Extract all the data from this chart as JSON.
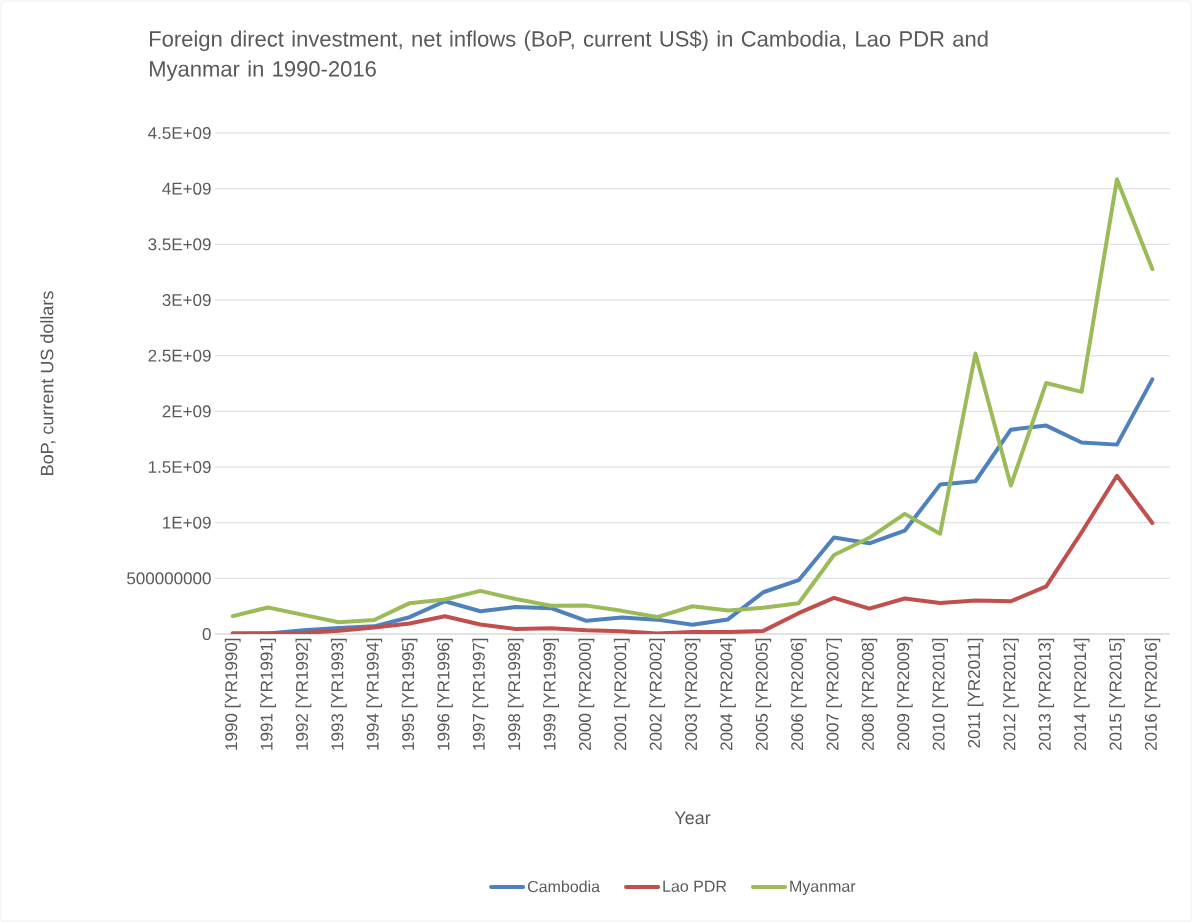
{
  "chart_data": {
    "type": "line",
    "title": "Foreign direct investment, net inflows (BoP, current US$) in Cambodia, Lao PDR and Myanmar in 1990-2016",
    "xlabel": "Year",
    "ylabel": "BoP, current US dollars",
    "categories": [
      "1990 [YR1990]",
      "1991 [YR1991]",
      "1992 [YR1992]",
      "1993 [YR1993]",
      "1994 [YR1994]",
      "1995 [YR1995]",
      "1996 [YR1996]",
      "1997 [YR1997]",
      "1998 [YR1998]",
      "1999 [YR1999]",
      "2000 [YR2000]",
      "2001 [YR2001]",
      "2002 [YR2002]",
      "2003 [YR2003]",
      "2004 [YR2004]",
      "2005 [YR2005]",
      "2006 [YR2006]",
      "2007 [YR2007]",
      "2008 [YR2008]",
      "2009 [YR2009]",
      "2010 [YR2010]",
      "2011 [YR2011]",
      "2012 [YR2012]",
      "2013 [YR2013]",
      "2014 [YR2014]",
      "2015 [YR2015]",
      "2016 [YR2016]"
    ],
    "series": [
      {
        "name": "Cambodia",
        "color": "#4f81bd",
        "values": [
          0,
          5000000,
          33000000,
          54000000,
          69000000,
          151000000,
          294000000,
          204000000,
          243000000,
          232000000,
          118000000,
          149000000,
          129000000,
          84000000,
          131000000,
          375000000,
          483000000,
          867000000,
          815000000,
          928000000,
          1342000000,
          1372000000,
          1835000000,
          1872000000,
          1720000000,
          1701000000,
          2287000000
        ]
      },
      {
        "name": "Lao PDR",
        "color": "#c0504d",
        "values": [
          6000000,
          7000000,
          8000000,
          30000000,
          59000000,
          95000000,
          160000000,
          86000000,
          45000000,
          52000000,
          34000000,
          24000000,
          5000000,
          19000000,
          17000000,
          28000000,
          187000000,
          324000000,
          228000000,
          319000000,
          279000000,
          301000000,
          294000000,
          427000000,
          913000000,
          1421000000,
          997000000
        ]
      },
      {
        "name": "Myanmar",
        "color": "#9bbb59",
        "values": [
          161000000,
          238000000,
          172000000,
          105000000,
          126000000,
          277000000,
          310000000,
          387000000,
          314000000,
          253000000,
          255000000,
          208000000,
          152000000,
          249000000,
          211000000,
          236000000,
          276000000,
          710000000,
          864000000,
          1079000000,
          901000000,
          2520000000,
          1334000000,
          2255000000,
          2175000000,
          4084000000,
          3278000000
        ]
      }
    ],
    "ylim": [
      0,
      4500000000
    ],
    "yticks": [
      0,
      500000000,
      {
        "value": 1000000000,
        "label": "1E+09"
      },
      {
        "value": 1500000000,
        "label": "1.5E+09"
      },
      {
        "value": 2000000000,
        "label": "2E+09"
      },
      {
        "value": 2500000000,
        "label": "2.5E+09"
      },
      {
        "value": 3000000000,
        "label": "3E+09"
      },
      {
        "value": 3500000000,
        "label": "3.5E+09"
      },
      {
        "value": 4000000000,
        "label": "4E+09"
      },
      {
        "value": 4500000000,
        "label": "4.5E+09"
      }
    ],
    "grid": "y",
    "legend": "bottom",
    "marker": "none",
    "line_style": "solid"
  }
}
